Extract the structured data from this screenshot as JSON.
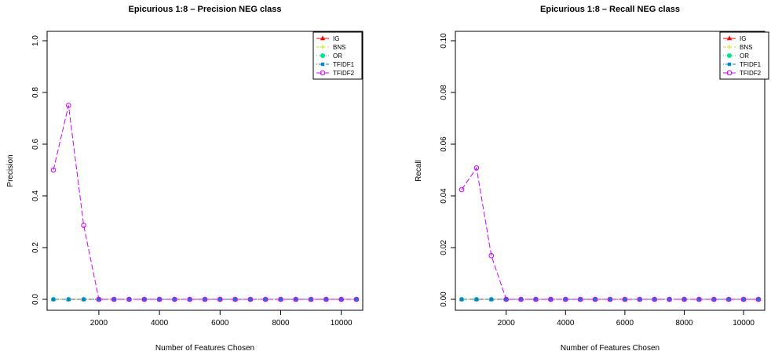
{
  "chart_data": [
    {
      "type": "line",
      "title": "Epicurious 1:8 – Precision NEG class",
      "xlabel": "Number of Features Chosen",
      "ylabel": "Precision",
      "xlim": [
        500,
        10500
      ],
      "ylim": [
        0,
        1.0
      ],
      "x_ticks": [
        2000,
        4000,
        6000,
        8000,
        10000
      ],
      "x_tick_labels": [
        "2000",
        "4000",
        "6000",
        "8000",
        "10000"
      ],
      "y_ticks": [
        0.0,
        0.2,
        0.4,
        0.6,
        0.8,
        1.0
      ],
      "y_tick_labels": [
        "0.0",
        "0.2",
        "0.4",
        "0.6",
        "0.8",
        "1.0"
      ],
      "grid": false,
      "legend_position": "top-right",
      "x": [
        500,
        1000,
        1500,
        2000,
        2500,
        3000,
        3500,
        4000,
        4500,
        5000,
        5500,
        6000,
        6500,
        7000,
        7500,
        8000,
        8500,
        9000,
        9500,
        10000,
        10500
      ],
      "series": [
        {
          "name": "IG",
          "color": "#ff0000",
          "marker": "triangle",
          "dash": "solid",
          "values": [
            0,
            0,
            0,
            0,
            0,
            0,
            0,
            0,
            0,
            0,
            0,
            0,
            0,
            0,
            0,
            0,
            0,
            0,
            0,
            0,
            0
          ]
        },
        {
          "name": "BNS",
          "color": "#c8e600",
          "marker": "plus",
          "dash": "dashed",
          "values": [
            0,
            0,
            0,
            0,
            0,
            0,
            0,
            0,
            0,
            0,
            0,
            0,
            0,
            0,
            0,
            0,
            0,
            0,
            0,
            0,
            0
          ]
        },
        {
          "name": "OR",
          "color": "#00e58a",
          "marker": "circle-filled",
          "dash": "dotted",
          "values": [
            0,
            0,
            0,
            0,
            0,
            0,
            0,
            0,
            0,
            0,
            0,
            0,
            0,
            0,
            0,
            0,
            0,
            0,
            0,
            0,
            0
          ]
        },
        {
          "name": "TFIDF1",
          "color": "#0a84c8",
          "marker": "square",
          "dash": "dotdash",
          "values": [
            0,
            0,
            0,
            0,
            0,
            0,
            0,
            0,
            0,
            0,
            0,
            0,
            0,
            0,
            0,
            0,
            0,
            0,
            0,
            0,
            0
          ]
        },
        {
          "name": "TFIDF2",
          "color": "#cc00ff",
          "marker": "circle-open",
          "dash": "longdash",
          "values": [
            0.5,
            0.75,
            0.286,
            0,
            0,
            0,
            0,
            0,
            0,
            0,
            0,
            0,
            0,
            0,
            0,
            0,
            0,
            0,
            0,
            0,
            0
          ]
        }
      ]
    },
    {
      "type": "line",
      "title": "Epicurious 1:8 – Recall NEG class",
      "xlabel": "Number of Features Chosen",
      "ylabel": "Recall",
      "xlim": [
        500,
        10500
      ],
      "ylim": [
        0,
        0.1
      ],
      "x_ticks": [
        2000,
        4000,
        6000,
        8000,
        10000
      ],
      "x_tick_labels": [
        "2000",
        "4000",
        "6000",
        "8000",
        "10000"
      ],
      "y_ticks": [
        0.0,
        0.02,
        0.04,
        0.06,
        0.08,
        0.1
      ],
      "y_tick_labels": [
        "0.00",
        "0.02",
        "0.04",
        "0.06",
        "0.08",
        "0.10"
      ],
      "grid": false,
      "legend_position": "top-right",
      "x": [
        500,
        1000,
        1500,
        2000,
        2500,
        3000,
        3500,
        4000,
        4500,
        5000,
        5500,
        6000,
        6500,
        7000,
        7500,
        8000,
        8500,
        9000,
        9500,
        10000,
        10500
      ],
      "series": [
        {
          "name": "IG",
          "color": "#ff0000",
          "marker": "triangle",
          "dash": "solid",
          "values": [
            0,
            0,
            0,
            0,
            0,
            0,
            0,
            0,
            0,
            0,
            0,
            0,
            0,
            0,
            0,
            0,
            0,
            0,
            0,
            0,
            0
          ]
        },
        {
          "name": "BNS",
          "color": "#c8e600",
          "marker": "plus",
          "dash": "dashed",
          "values": [
            0,
            0,
            0,
            0,
            0,
            0,
            0,
            0,
            0,
            0,
            0,
            0,
            0,
            0,
            0,
            0,
            0,
            0,
            0,
            0,
            0
          ]
        },
        {
          "name": "OR",
          "color": "#00e58a",
          "marker": "circle-filled",
          "dash": "dotted",
          "values": [
            0,
            0,
            0,
            0,
            0,
            0,
            0,
            0,
            0,
            0,
            0,
            0,
            0,
            0,
            0,
            0,
            0,
            0,
            0,
            0,
            0
          ]
        },
        {
          "name": "TFIDF1",
          "color": "#0a84c8",
          "marker": "square",
          "dash": "dotdash",
          "values": [
            0,
            0,
            0,
            0,
            0,
            0,
            0,
            0,
            0,
            0,
            0,
            0,
            0,
            0,
            0,
            0,
            0,
            0,
            0,
            0,
            0
          ]
        },
        {
          "name": "TFIDF2",
          "color": "#cc00ff",
          "marker": "circle-open",
          "dash": "longdash",
          "values": [
            0.0424,
            0.0508,
            0.0169,
            0,
            0,
            0,
            0,
            0,
            0,
            0,
            0,
            0,
            0,
            0,
            0,
            0,
            0,
            0,
            0,
            0,
            0
          ]
        }
      ]
    }
  ]
}
